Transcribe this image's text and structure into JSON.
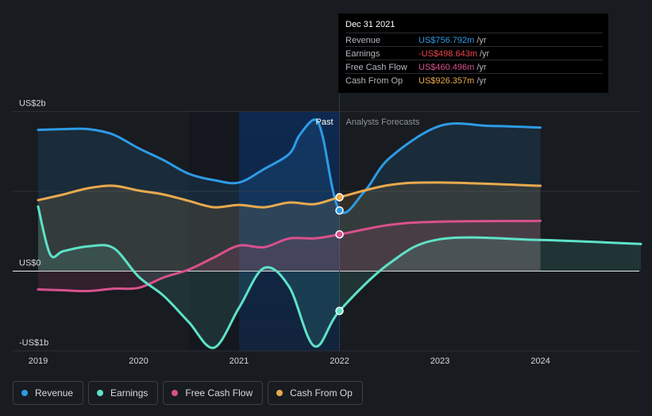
{
  "chart_data": {
    "type": "line",
    "y_tick_labels": [
      "US$2b",
      "US$0",
      "-US$1b"
    ],
    "x_tick_labels": [
      "2019",
      "2020",
      "2021",
      "2022",
      "2023",
      "2024"
    ],
    "period_labels": {
      "past": "Past",
      "forecast": "Analysts Forecasts"
    },
    "ylim": [
      -1,
      2
    ],
    "series": [
      {
        "name": "Revenue",
        "color": "#2d9be5",
        "x": [
          2019.0,
          2019.25,
          2019.5,
          2019.75,
          2020.0,
          2020.25,
          2020.5,
          2020.75,
          2021.0,
          2021.25,
          2021.5,
          2021.6,
          2021.75,
          2021.83,
          2022.0,
          2022.25,
          2022.5,
          2023.0,
          2023.5,
          2024.0
        ],
        "y": [
          1.77,
          1.78,
          1.78,
          1.71,
          1.54,
          1.39,
          1.22,
          1.14,
          1.11,
          1.28,
          1.47,
          1.7,
          1.9,
          1.7,
          0.76,
          1.0,
          1.42,
          1.82,
          1.82,
          1.8
        ]
      },
      {
        "name": "Earnings",
        "color": "#5ee2c8",
        "x": [
          2019.0,
          2019.12,
          2019.25,
          2019.5,
          2019.75,
          2020.0,
          2020.25,
          2020.5,
          2020.75,
          2021.0,
          2021.25,
          2021.5,
          2021.75,
          2022.0,
          2022.5,
          2023.0,
          2024.0,
          2025.0
        ],
        "y": [
          0.81,
          0.21,
          0.25,
          0.31,
          0.29,
          -0.07,
          -0.31,
          -0.64,
          -0.96,
          -0.46,
          0.04,
          -0.2,
          -0.94,
          -0.499,
          0.1,
          0.4,
          0.39,
          0.34
        ]
      },
      {
        "name": "Free Cash Flow",
        "color": "#d9518c",
        "x": [
          2019.0,
          2019.25,
          2019.5,
          2019.75,
          2020.0,
          2020.25,
          2020.5,
          2020.75,
          2021.0,
          2021.25,
          2021.5,
          2021.75,
          2022.0,
          2022.5,
          2023.0,
          2024.0
        ],
        "y": [
          -0.23,
          -0.24,
          -0.25,
          -0.22,
          -0.21,
          -0.08,
          0.02,
          0.17,
          0.32,
          0.3,
          0.41,
          0.41,
          0.46,
          0.58,
          0.62,
          0.63
        ]
      },
      {
        "name": "Cash From Op",
        "color": "#e8a94e",
        "x": [
          2019.0,
          2019.25,
          2019.5,
          2019.75,
          2020.0,
          2020.25,
          2020.5,
          2020.75,
          2021.0,
          2021.25,
          2021.5,
          2021.75,
          2022.0,
          2022.5,
          2023.0,
          2024.0
        ],
        "y": [
          0.89,
          0.96,
          1.04,
          1.07,
          1.01,
          0.96,
          0.88,
          0.8,
          0.83,
          0.8,
          0.86,
          0.84,
          0.926,
          1.08,
          1.11,
          1.07
        ]
      }
    ]
  },
  "tooltip": {
    "date": "Dec 31 2021",
    "unit": "/yr",
    "rows": [
      {
        "label": "Revenue",
        "value": "US$756.792m",
        "color": "#2d9be5"
      },
      {
        "label": "Earnings",
        "value": "-US$498.643m",
        "color": "#f0454b"
      },
      {
        "label": "Free Cash Flow",
        "value": "US$460.496m",
        "color": "#d9518c"
      },
      {
        "label": "Cash From Op",
        "value": "US$926.357m",
        "color": "#e8a94e"
      }
    ]
  },
  "legend": [
    {
      "label": "Revenue",
      "color": "#2d9be5"
    },
    {
      "label": "Earnings",
      "color": "#5ee2c8"
    },
    {
      "label": "Free Cash Flow",
      "color": "#d9518c"
    },
    {
      "label": "Cash From Op",
      "color": "#e8a94e"
    }
  ]
}
